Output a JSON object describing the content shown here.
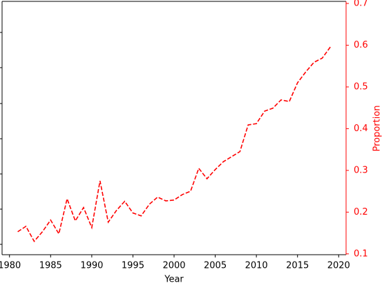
{
  "chart_data": {
    "type": "line",
    "x_label": "Year",
    "y2_label": "Proportion",
    "x": [
      1981,
      1982,
      1983,
      1984,
      1985,
      1986,
      1987,
      1988,
      1989,
      1990,
      1991,
      1992,
      1993,
      1994,
      1995,
      1996,
      1997,
      1998,
      1999,
      2000,
      2001,
      2002,
      2003,
      2004,
      2005,
      2006,
      2007,
      2008,
      2009,
      2010,
      2011,
      2012,
      2013,
      2014,
      2015,
      2016,
      2017,
      2018,
      2019
    ],
    "series": [
      {
        "color": "#ff0000",
        "axis": "y2",
        "linestyle": "dashed",
        "values": [
          0.153,
          0.166,
          0.13,
          0.153,
          0.181,
          0.148,
          0.232,
          0.179,
          0.211,
          0.163,
          0.275,
          0.176,
          0.204,
          0.226,
          0.198,
          0.191,
          0.219,
          0.236,
          0.227,
          0.229,
          0.242,
          0.25,
          0.305,
          0.28,
          0.302,
          0.321,
          0.333,
          0.345,
          0.409,
          0.412,
          0.442,
          0.449,
          0.469,
          0.465,
          0.51,
          0.536,
          0.559,
          0.569,
          0.596
        ]
      }
    ],
    "xlim": [
      1979.1,
      2020.9
    ],
    "xticks": [
      1980,
      1985,
      1990,
      1995,
      2000,
      2005,
      2010,
      2015,
      2020
    ],
    "y2lim": [
      0.098,
      0.705
    ],
    "y2ticks": [
      0.1,
      0.2,
      0.3,
      0.4,
      0.5,
      0.6,
      0.7
    ],
    "axis_color": "#ff0000"
  }
}
